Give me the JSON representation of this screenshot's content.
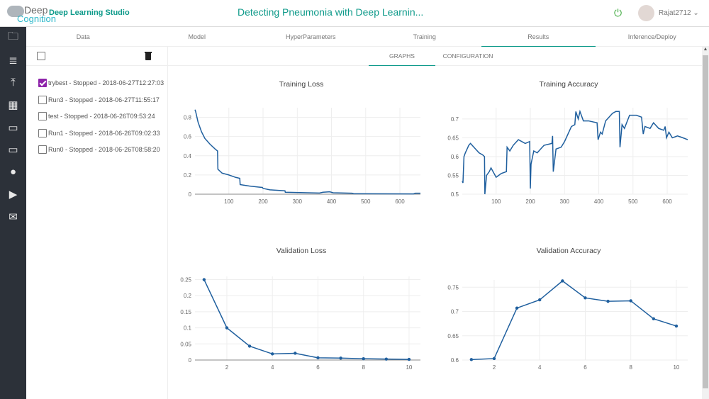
{
  "header": {
    "logo_top": "Deep",
    "logo_bottom": "Cognition",
    "app_name": "Deep Learning Studio",
    "project_title": "Detecting Pneumonia with Deep Learnin...",
    "user": "Rajat2712",
    "power_icon": "power-icon",
    "user_menu_icon": "chevron-down-icon"
  },
  "sidebar": {
    "icons": [
      "folder-star-icon",
      "database-icon",
      "upload-icon",
      "grid-icon",
      "folder-icon",
      "laptop-icon",
      "chat-icon",
      "play-icon",
      "mail-icon"
    ]
  },
  "tabs": [
    {
      "label": "Data"
    },
    {
      "label": "Model"
    },
    {
      "label": "HyperParameters"
    },
    {
      "label": "Training"
    },
    {
      "label": "Results",
      "active": true
    },
    {
      "label": "Inference/Deploy"
    }
  ],
  "runs": [
    {
      "label": "trybest - Stopped - 2018-06-27T12:27:03",
      "checked": true
    },
    {
      "label": "Run3 - Stopped - 2018-06-27T11:55:17",
      "checked": false
    },
    {
      "label": "test - Stopped - 2018-06-26T09:53:24",
      "checked": false
    },
    {
      "label": "Run1 - Stopped - 2018-06-26T09:02:33",
      "checked": false
    },
    {
      "label": "Run0 - Stopped - 2018-06-26T08:58:20",
      "checked": false
    }
  ],
  "subtabs": {
    "graphs": "GRAPHS",
    "configuration": "CONFIGURATION"
  },
  "colors": {
    "accent": "#0e9a8a",
    "line": "#1f5f9e",
    "checkbox": "#8e24aa"
  },
  "chart_data": [
    {
      "type": "line",
      "title": "Training Loss",
      "xlim": [
        1,
        660
      ],
      "ylim": [
        0,
        0.9
      ],
      "xticks": [
        100,
        200,
        300,
        400,
        500,
        600
      ],
      "yticks": [
        0,
        0.2,
        0.4,
        0.6,
        0.8
      ],
      "grid": true,
      "points": [
        [
          1,
          0.88
        ],
        [
          3,
          0.86
        ],
        [
          10,
          0.75
        ],
        [
          20,
          0.65
        ],
        [
          30,
          0.58
        ],
        [
          45,
          0.52
        ],
        [
          60,
          0.47
        ],
        [
          67,
          0.45
        ],
        [
          68,
          0.26
        ],
        [
          80,
          0.22
        ],
        [
          100,
          0.2
        ],
        [
          120,
          0.175
        ],
        [
          132,
          0.165
        ],
        [
          133,
          0.1
        ],
        [
          160,
          0.085
        ],
        [
          185,
          0.075
        ],
        [
          198,
          0.07
        ],
        [
          200,
          0.06
        ],
        [
          220,
          0.045
        ],
        [
          264,
          0.035
        ],
        [
          265,
          0.02
        ],
        [
          330,
          0.015
        ],
        [
          365,
          0.012
        ],
        [
          375,
          0.02
        ],
        [
          395,
          0.025
        ],
        [
          405,
          0.015
        ],
        [
          460,
          0.01
        ],
        [
          465,
          0.005
        ],
        [
          640,
          0.003
        ],
        [
          645,
          0.01
        ],
        [
          660,
          0.01
        ]
      ]
    },
    {
      "type": "line",
      "title": "Training Accuracy",
      "xlim": [
        1,
        660
      ],
      "ylim": [
        0.5,
        0.73
      ],
      "xticks": [
        100,
        200,
        300,
        400,
        500,
        600
      ],
      "yticks": [
        0.5,
        0.55,
        0.6,
        0.65,
        0.7
      ],
      "grid": true,
      "points": [
        [
          1,
          0.535
        ],
        [
          3,
          0.53
        ],
        [
          6,
          0.6
        ],
        [
          10,
          0.61
        ],
        [
          20,
          0.63
        ],
        [
          25,
          0.635
        ],
        [
          40,
          0.62
        ],
        [
          50,
          0.61
        ],
        [
          60,
          0.605
        ],
        [
          66,
          0.6
        ],
        [
          67,
          0.5
        ],
        [
          72,
          0.55
        ],
        [
          80,
          0.56
        ],
        [
          85,
          0.57
        ],
        [
          100,
          0.545
        ],
        [
          115,
          0.555
        ],
        [
          130,
          0.56
        ],
        [
          132,
          0.625
        ],
        [
          140,
          0.615
        ],
        [
          150,
          0.63
        ],
        [
          165,
          0.645
        ],
        [
          185,
          0.635
        ],
        [
          198,
          0.64
        ],
        [
          200,
          0.515
        ],
        [
          202,
          0.58
        ],
        [
          210,
          0.615
        ],
        [
          220,
          0.61
        ],
        [
          240,
          0.63
        ],
        [
          263,
          0.635
        ],
        [
          265,
          0.655
        ],
        [
          267,
          0.56
        ],
        [
          275,
          0.62
        ],
        [
          290,
          0.625
        ],
        [
          300,
          0.64
        ],
        [
          320,
          0.68
        ],
        [
          330,
          0.685
        ],
        [
          333,
          0.72
        ],
        [
          340,
          0.7
        ],
        [
          345,
          0.72
        ],
        [
          355,
          0.695
        ],
        [
          370,
          0.695
        ],
        [
          395,
          0.69
        ],
        [
          398,
          0.645
        ],
        [
          405,
          0.665
        ],
        [
          410,
          0.66
        ],
        [
          420,
          0.695
        ],
        [
          440,
          0.715
        ],
        [
          450,
          0.72
        ],
        [
          460,
          0.72
        ],
        [
          462,
          0.625
        ],
        [
          468,
          0.685
        ],
        [
          475,
          0.675
        ],
        [
          490,
          0.71
        ],
        [
          510,
          0.71
        ],
        [
          525,
          0.705
        ],
        [
          530,
          0.66
        ],
        [
          535,
          0.68
        ],
        [
          550,
          0.675
        ],
        [
          560,
          0.69
        ],
        [
          575,
          0.675
        ],
        [
          590,
          0.67
        ],
        [
          594,
          0.68
        ],
        [
          598,
          0.65
        ],
        [
          605,
          0.665
        ],
        [
          615,
          0.65
        ],
        [
          630,
          0.655
        ],
        [
          640,
          0.652
        ],
        [
          660,
          0.645
        ]
      ]
    },
    {
      "type": "line",
      "title": "Validation Loss",
      "xlim": [
        0.6,
        10.5
      ],
      "ylim": [
        0,
        0.26
      ],
      "xticks": [
        2,
        4,
        6,
        8,
        10
      ],
      "yticks": [
        0,
        0.05,
        0.1,
        0.15,
        0.2,
        0.25
      ],
      "grid": true,
      "markers": true,
      "points": [
        [
          1,
          0.25
        ],
        [
          2,
          0.1
        ],
        [
          3,
          0.043
        ],
        [
          4,
          0.019
        ],
        [
          5,
          0.021
        ],
        [
          6,
          0.007
        ],
        [
          7,
          0.006
        ],
        [
          8,
          0.004
        ],
        [
          9,
          0.003
        ],
        [
          10,
          0.002
        ]
      ]
    },
    {
      "type": "line",
      "title": "Validation Accuracy",
      "xlim": [
        0.6,
        10.5
      ],
      "ylim": [
        0.6,
        0.765
      ],
      "xticks": [
        2,
        4,
        6,
        8,
        10
      ],
      "yticks": [
        0.6,
        0.65,
        0.7,
        0.75
      ],
      "grid": true,
      "markers": true,
      "points": [
        [
          1,
          0.601
        ],
        [
          2,
          0.603
        ],
        [
          3,
          0.707
        ],
        [
          4,
          0.724
        ],
        [
          5,
          0.763
        ],
        [
          6,
          0.728
        ],
        [
          7,
          0.721
        ],
        [
          8,
          0.722
        ],
        [
          9,
          0.685
        ],
        [
          10,
          0.67
        ]
      ]
    }
  ]
}
